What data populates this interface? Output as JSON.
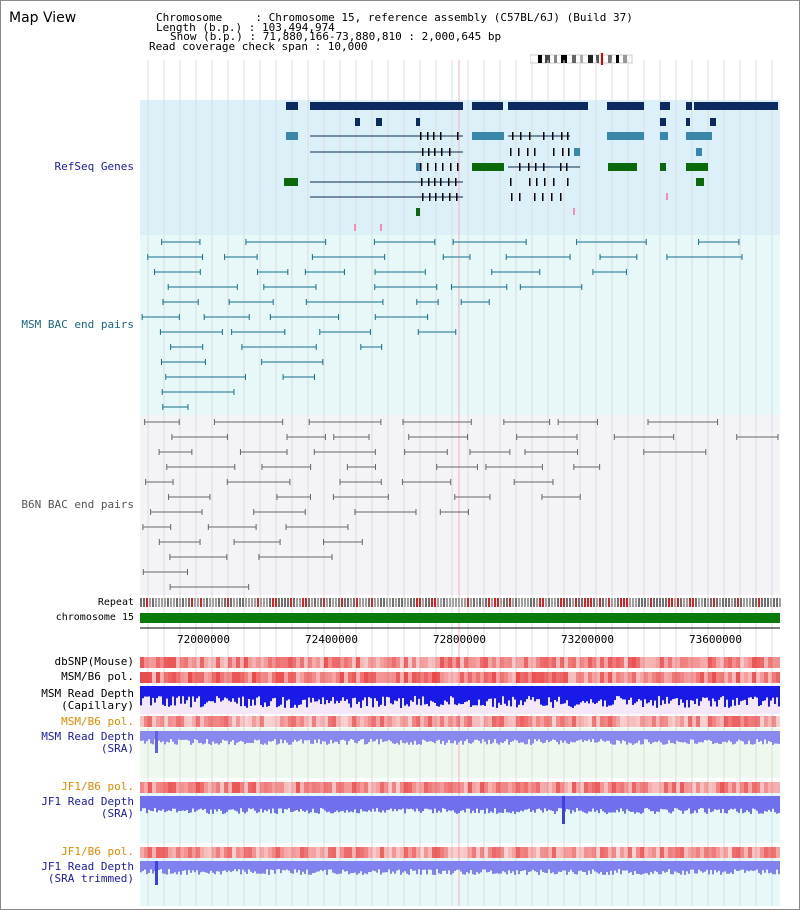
{
  "page": {
    "title": "Map View"
  },
  "header": {
    "line1": "Chromosome     : Chromosome 15, reference assembly (C57BL/6J) (Build 37)",
    "line2": "Length (b.p.) : 103,494,974",
    "line3": "Show (b.p.) : 71,880,166-73,880,810 : 2,000,645 bp",
    "line4": "Read coverage check span : 10,000"
  },
  "tracks": {
    "refseq": {
      "label": "RefSeq Genes",
      "color": "#1a1aa6"
    },
    "msm_bac": {
      "label": "MSM BAC end pairs",
      "color": "#1a6680"
    },
    "b6n_bac": {
      "label": "B6N BAC end pairs",
      "color": "#555555"
    },
    "repeat": {
      "label": "Repeat"
    },
    "chrom": {
      "label": "chromosome 15"
    },
    "dbsnp": {
      "label": "dbSNP(Mouse)"
    },
    "msm_b6_pol_1": {
      "label": "MSM/B6 pol."
    },
    "msm_depth_cap": {
      "label1": "MSM Read Depth",
      "label2": "(Capillary)"
    },
    "msm_b6_pol_2": {
      "label": "MSM/B6 pol.",
      "color": "#e08a00"
    },
    "msm_depth_sra": {
      "label1": "MSM Read Depth",
      "label2": "(SRA)",
      "color": "#1a1aa6"
    },
    "jf1_b6_pol_1": {
      "label": "JF1/B6 pol.",
      "color": "#e08a00"
    },
    "jf1_depth_sra": {
      "label1": "JF1 Read Depth",
      "label2": "(SRA)",
      "color": "#1a1aa6"
    },
    "jf1_b6_pol_2": {
      "label": "JF1/B6 pol.",
      "color": "#e08a00"
    },
    "jf1_depth_trim": {
      "label1": "JF1 Read Depth",
      "label2": "(SRA trimmed)",
      "color": "#1a1aa6"
    }
  },
  "axis": {
    "ticks": [
      "72000000",
      "72400000",
      "72800000",
      "73200000",
      "73600000"
    ]
  }
}
